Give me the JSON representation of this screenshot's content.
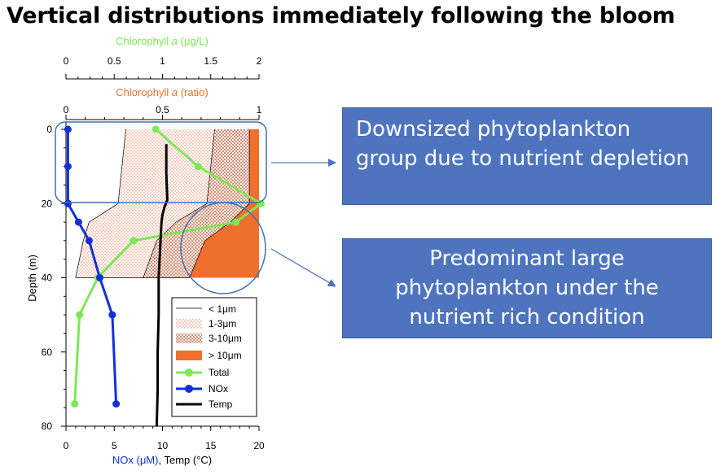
{
  "page_title": "Vertical distributions immediately following the bloom",
  "callouts": {
    "top": "Downsized phytoplankton group due to nutrient depletion",
    "bottom": "Predominant large phytoplankton under the nutrient rich condition"
  },
  "colors": {
    "total": "#7de855",
    "nox": "#1030d8",
    "temp": "#000000",
    "gt10": "#ef6f2c",
    "dots_1_3": "#e8805a",
    "callout": "#4e74c0",
    "circle": "#3f6fb5"
  },
  "chart_data": {
    "type": "line",
    "top_axis_1": {
      "label_prefix": "Chlorophyll ",
      "label_italic": "a",
      "label_suffix": " (μg/L)",
      "range": [
        0,
        2
      ],
      "ticks": [
        "0",
        "0.5",
        "1",
        "1.5",
        "2"
      ]
    },
    "top_axis_2": {
      "label_prefix": "Chlorophyll ",
      "label_italic": "a",
      "label_suffix": " (ratio)",
      "range": [
        0,
        1
      ],
      "ticks": [
        "0",
        "0.5",
        "1"
      ]
    },
    "bottom_axis": {
      "label_nox": "NOx (μM)",
      "label_rest": ", Temp (°C)",
      "range": [
        0,
        20
      ],
      "ticks": [
        "0",
        "5",
        "10",
        "15",
        "20"
      ]
    },
    "y_axis": {
      "label": "Depth (m)",
      "range": [
        0,
        80
      ],
      "ticks": [
        "0",
        "20",
        "40",
        "60",
        "80"
      ]
    },
    "size_fraction_ratio": {
      "depth": [
        0,
        20,
        25,
        30,
        40
      ],
      "lt1_upper": [
        0.31,
        0.27,
        0.12,
        0.09,
        0.05
      ],
      "lt1_1to3_upper": [
        0.77,
        0.73,
        0.57,
        0.47,
        0.4
      ],
      "lt1_1to3_3to10_upper": [
        0.95,
        0.95,
        0.85,
        0.72,
        0.64
      ]
    },
    "series": [
      {
        "name": "Total",
        "axis": "chl_ugL",
        "depth": [
          0,
          10,
          20,
          25,
          30,
          40,
          50,
          74
        ],
        "values": [
          0.93,
          1.37,
          2.02,
          1.76,
          0.7,
          0.33,
          0.14,
          0.09
        ]
      },
      {
        "name": "NOx",
        "axis": "bottom",
        "depth": [
          0,
          10,
          20,
          25,
          30,
          40,
          50,
          74
        ],
        "values": [
          0.2,
          0.2,
          0.2,
          1.3,
          2.4,
          3.5,
          4.8,
          5.2
        ]
      },
      {
        "name": "Temp",
        "axis": "bottom",
        "depth": [
          4,
          12,
          19,
          21,
          23,
          25,
          30,
          40,
          50,
          60,
          70,
          80
        ],
        "values": [
          10.4,
          10.4,
          10.5,
          10.2,
          10.0,
          9.9,
          9.8,
          9.6,
          9.6,
          9.5,
          9.5,
          9.4
        ]
      }
    ],
    "legend": {
      "placement": "lower-right",
      "entries": [
        "< 1μm",
        "1-3μm",
        "3-10μm",
        "> 10μm",
        "Total",
        "NOx",
        "Temp"
      ]
    }
  }
}
